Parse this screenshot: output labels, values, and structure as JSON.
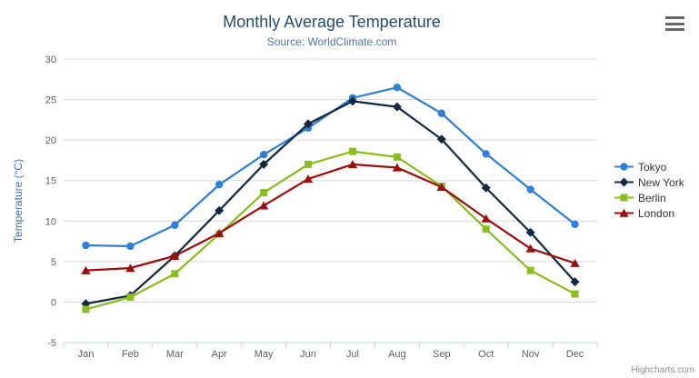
{
  "header": {
    "title": "Monthly Average Temperature",
    "subtitle": "Source: WorldClimate.com"
  },
  "toolbar": {
    "menu_icon": "hamburger-icon"
  },
  "credit": {
    "label": "Highcharts.com"
  },
  "style_colors": {
    "title": "#274b6d",
    "subtitle": "#4d759e",
    "axis_title": "#4572a7",
    "tick_label": "#606060",
    "grid_line": "#d8d8d8",
    "axis_line": "#c0d0e0",
    "legend_text": "#333333",
    "credit_text": "#909090",
    "menu_icon_bars": "#666666"
  },
  "chart_data": {
    "type": "line",
    "title": "Monthly Average Temperature",
    "subtitle": "Source: WorldClimate.com",
    "xlabel": "",
    "ylabel": "Temperature (°C)",
    "categories": [
      "Jan",
      "Feb",
      "Mar",
      "Apr",
      "May",
      "Jun",
      "Jul",
      "Aug",
      "Sep",
      "Oct",
      "Nov",
      "Dec"
    ],
    "series": [
      {
        "name": "Tokyo",
        "color": "#2f7ed8",
        "marker": "circle",
        "values": [
          7.0,
          6.9,
          9.5,
          14.5,
          18.2,
          21.5,
          25.2,
          26.5,
          23.3,
          18.3,
          13.9,
          9.6
        ]
      },
      {
        "name": "New York",
        "color": "#14293f",
        "marker": "diamond",
        "values": [
          -0.2,
          0.8,
          5.7,
          11.3,
          17.0,
          22.0,
          24.8,
          24.1,
          20.1,
          14.1,
          8.6,
          2.5
        ]
      },
      {
        "name": "Berlin",
        "color": "#8bbc21",
        "marker": "square",
        "values": [
          -0.9,
          0.6,
          3.5,
          8.4,
          13.5,
          17.0,
          18.6,
          17.9,
          14.3,
          9.0,
          3.9,
          1.0
        ]
      },
      {
        "name": "London",
        "color": "#990f0f",
        "marker": "triangle",
        "values": [
          3.9,
          4.2,
          5.7,
          8.5,
          11.9,
          15.2,
          17.0,
          16.6,
          14.2,
          10.3,
          6.6,
          4.8
        ]
      }
    ],
    "ylim": [
      -5,
      30
    ],
    "ytick_step": 5,
    "grid": true,
    "legend_position": "right"
  }
}
